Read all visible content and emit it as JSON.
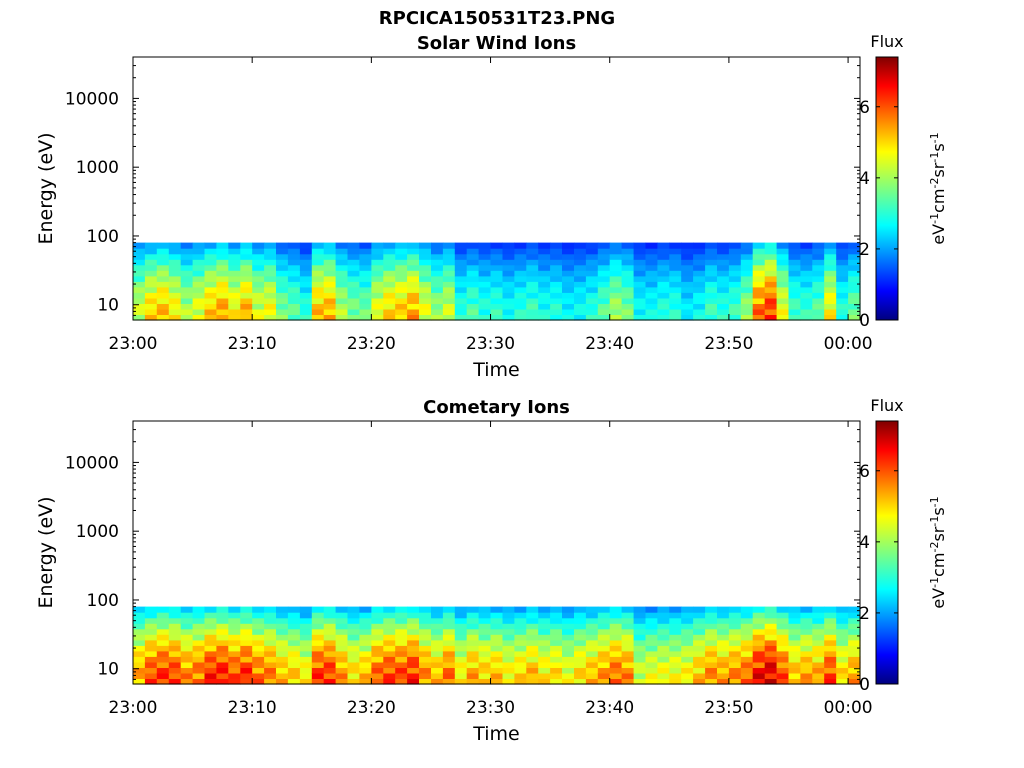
{
  "figure_title": "RPCICA150531T23.PNG",
  "colors": {
    "axis": "#000000",
    "background": "#ffffff"
  },
  "chart_data": [
    {
      "type": "heatmap",
      "title": "Solar Wind Ions",
      "xlabel": "Time",
      "ylabel": "Energy (eV)",
      "y_scale": "log",
      "xlim": [
        "23:00",
        "00:01"
      ],
      "ylim": [
        6,
        40000
      ],
      "x_ticks": [
        "23:00",
        "23:10",
        "23:20",
        "23:30",
        "23:40",
        "23:50",
        "00:00"
      ],
      "y_ticks": [
        "10",
        "100",
        "1000",
        "10000"
      ],
      "colorbar": {
        "title": "Flux",
        "label": "eV-1cm-2sr-1s-1",
        "range": [
          0,
          7.4
        ],
        "ticks": [
          "0",
          "2",
          "4",
          "6"
        ],
        "colormap": "jet"
      },
      "data_energy_range_eV": [
        6,
        80
      ],
      "flux_profile": [
        {
          "t": "23:00",
          "v": 4.2
        },
        {
          "t": "23:01",
          "v": 4.8
        },
        {
          "t": "23:02",
          "v": 5.0
        },
        {
          "t": "23:03",
          "v": 4.6
        },
        {
          "t": "23:04",
          "v": 4.0
        },
        {
          "t": "23:05",
          "v": 4.4
        },
        {
          "t": "23:06",
          "v": 4.9
        },
        {
          "t": "23:07",
          "v": 5.2
        },
        {
          "t": "23:08",
          "v": 4.6
        },
        {
          "t": "23:09",
          "v": 5.1
        },
        {
          "t": "23:10",
          "v": 4.3
        },
        {
          "t": "23:11",
          "v": 4.5
        },
        {
          "t": "23:12",
          "v": 3.6
        },
        {
          "t": "23:13",
          "v": 3.4
        },
        {
          "t": "23:14",
          "v": 3.0
        },
        {
          "t": "23:15",
          "v": 5.0
        },
        {
          "t": "23:16",
          "v": 5.1
        },
        {
          "t": "23:17",
          "v": 4.0
        },
        {
          "t": "23:18",
          "v": 3.6
        },
        {
          "t": "23:19",
          "v": 3.5
        },
        {
          "t": "23:20",
          "v": 4.4
        },
        {
          "t": "23:21",
          "v": 4.8
        },
        {
          "t": "23:22",
          "v": 4.9
        },
        {
          "t": "23:23",
          "v": 5.2
        },
        {
          "t": "23:24",
          "v": 4.4
        },
        {
          "t": "23:25",
          "v": 3.8
        },
        {
          "t": "23:26",
          "v": 4.2
        },
        {
          "t": "23:27",
          "v": 3.0
        },
        {
          "t": "23:28",
          "v": 3.3
        },
        {
          "t": "23:29",
          "v": 3.0
        },
        {
          "t": "23:30",
          "v": 3.1
        },
        {
          "t": "23:31",
          "v": 2.8
        },
        {
          "t": "23:32",
          "v": 3.0
        },
        {
          "t": "23:33",
          "v": 3.2
        },
        {
          "t": "23:34",
          "v": 2.9
        },
        {
          "t": "23:35",
          "v": 3.0
        },
        {
          "t": "23:36",
          "v": 2.7
        },
        {
          "t": "23:37",
          "v": 2.8
        },
        {
          "t": "23:38",
          "v": 3.0
        },
        {
          "t": "23:39",
          "v": 3.4
        },
        {
          "t": "23:40",
          "v": 3.9
        },
        {
          "t": "23:41",
          "v": 3.6
        },
        {
          "t": "23:42",
          "v": 2.8
        },
        {
          "t": "23:43",
          "v": 2.8
        },
        {
          "t": "23:44",
          "v": 3.0
        },
        {
          "t": "23:45",
          "v": 3.0
        },
        {
          "t": "23:46",
          "v": 2.6
        },
        {
          "t": "23:47",
          "v": 2.8
        },
        {
          "t": "23:48",
          "v": 3.2
        },
        {
          "t": "23:49",
          "v": 3.0
        },
        {
          "t": "23:50",
          "v": 3.2
        },
        {
          "t": "23:51",
          "v": 3.8
        },
        {
          "t": "23:52",
          "v": 5.6
        },
        {
          "t": "23:53",
          "v": 6.0
        },
        {
          "t": "23:54",
          "v": 4.4
        },
        {
          "t": "23:55",
          "v": 3.2
        },
        {
          "t": "23:56",
          "v": 3.1
        },
        {
          "t": "23:57",
          "v": 3.4
        },
        {
          "t": "23:58",
          "v": 4.6
        },
        {
          "t": "23:59",
          "v": 3.0
        },
        {
          "t": "00:00",
          "v": 3.5
        },
        {
          "t": "00:01",
          "v": 3.0
        }
      ]
    },
    {
      "type": "heatmap",
      "title": "Cometary Ions",
      "xlabel": "Time",
      "ylabel": "Energy (eV)",
      "y_scale": "log",
      "xlim": [
        "23:00",
        "00:01"
      ],
      "ylim": [
        6,
        40000
      ],
      "x_ticks": [
        "23:00",
        "23:10",
        "23:20",
        "23:30",
        "23:40",
        "23:50",
        "00:00"
      ],
      "y_ticks": [
        "10",
        "100",
        "1000",
        "10000"
      ],
      "colorbar": {
        "title": "Flux",
        "label": "eV-1cm-2sr-1s-1",
        "range": [
          0,
          7.4
        ],
        "ticks": [
          "0",
          "2",
          "4",
          "6"
        ],
        "colormap": "jet"
      },
      "data_energy_range_eV": [
        6,
        80
      ],
      "flux_profile": [
        {
          "t": "23:00",
          "v": 5.2
        },
        {
          "t": "23:01",
          "v": 5.8
        },
        {
          "t": "23:02",
          "v": 6.0
        },
        {
          "t": "23:03",
          "v": 5.9
        },
        {
          "t": "23:04",
          "v": 5.4
        },
        {
          "t": "23:05",
          "v": 5.6
        },
        {
          "t": "23:06",
          "v": 6.1
        },
        {
          "t": "23:07",
          "v": 6.2
        },
        {
          "t": "23:08",
          "v": 5.8
        },
        {
          "t": "23:09",
          "v": 6.1
        },
        {
          "t": "23:10",
          "v": 5.6
        },
        {
          "t": "23:11",
          "v": 5.5
        },
        {
          "t": "23:12",
          "v": 5.0
        },
        {
          "t": "23:13",
          "v": 4.9
        },
        {
          "t": "23:14",
          "v": 4.6
        },
        {
          "t": "23:15",
          "v": 6.0
        },
        {
          "t": "23:16",
          "v": 6.0
        },
        {
          "t": "23:17",
          "v": 5.3
        },
        {
          "t": "23:18",
          "v": 4.8
        },
        {
          "t": "23:19",
          "v": 5.0
        },
        {
          "t": "23:20",
          "v": 5.7
        },
        {
          "t": "23:21",
          "v": 5.9
        },
        {
          "t": "23:22",
          "v": 5.9
        },
        {
          "t": "23:23",
          "v": 6.1
        },
        {
          "t": "23:24",
          "v": 5.4
        },
        {
          "t": "23:25",
          "v": 5.0
        },
        {
          "t": "23:26",
          "v": 5.6
        },
        {
          "t": "23:27",
          "v": 4.6
        },
        {
          "t": "23:28",
          "v": 5.2
        },
        {
          "t": "23:29",
          "v": 4.9
        },
        {
          "t": "23:30",
          "v": 5.0
        },
        {
          "t": "23:31",
          "v": 4.6
        },
        {
          "t": "23:32",
          "v": 4.8
        },
        {
          "t": "23:33",
          "v": 5.1
        },
        {
          "t": "23:34",
          "v": 4.7
        },
        {
          "t": "23:35",
          "v": 4.8
        },
        {
          "t": "23:36",
          "v": 4.4
        },
        {
          "t": "23:37",
          "v": 4.8
        },
        {
          "t": "23:38",
          "v": 5.0
        },
        {
          "t": "23:39",
          "v": 5.3
        },
        {
          "t": "23:40",
          "v": 5.6
        },
        {
          "t": "23:41",
          "v": 5.4
        },
        {
          "t": "23:42",
          "v": 4.2
        },
        {
          "t": "23:43",
          "v": 4.4
        },
        {
          "t": "23:44",
          "v": 4.5
        },
        {
          "t": "23:45",
          "v": 4.5
        },
        {
          "t": "23:46",
          "v": 4.6
        },
        {
          "t": "23:47",
          "v": 5.0
        },
        {
          "t": "23:48",
          "v": 5.4
        },
        {
          "t": "23:49",
          "v": 5.2
        },
        {
          "t": "23:50",
          "v": 5.4
        },
        {
          "t": "23:51",
          "v": 5.6
        },
        {
          "t": "23:52",
          "v": 6.4
        },
        {
          "t": "23:53",
          "v": 6.6
        },
        {
          "t": "23:54",
          "v": 5.8
        },
        {
          "t": "23:55",
          "v": 5.0
        },
        {
          "t": "23:56",
          "v": 5.2
        },
        {
          "t": "23:57",
          "v": 5.2
        },
        {
          "t": "23:58",
          "v": 5.9
        },
        {
          "t": "23:59",
          "v": 4.8
        },
        {
          "t": "00:00",
          "v": 5.2
        },
        {
          "t": "00:01",
          "v": 4.6
        }
      ]
    }
  ]
}
